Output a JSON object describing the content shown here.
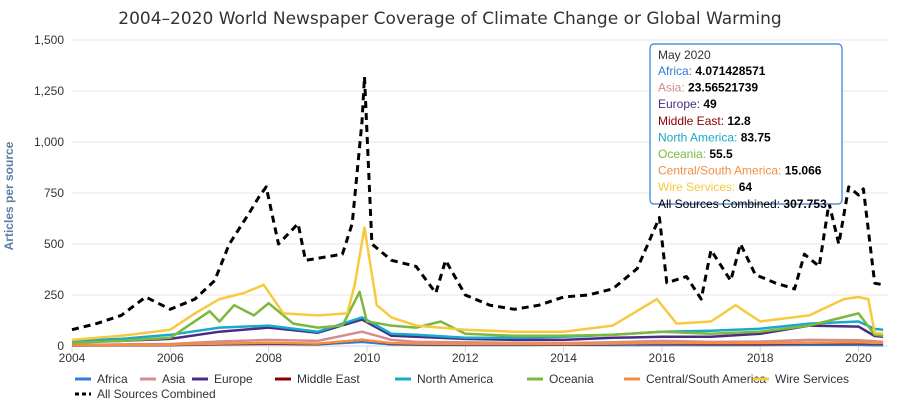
{
  "chart_data": {
    "type": "line",
    "title": "2004–2020 World Newspaper Coverage of Climate Change or Global Warming",
    "xlabel": "",
    "ylabel": "Articles per source",
    "xlim": [
      2004,
      2020.6
    ],
    "ylim": [
      0,
      1500
    ],
    "x_ticks": [
      "2004",
      "2006",
      "2008",
      "2010",
      "2012",
      "2014",
      "2016",
      "2018",
      "2020"
    ],
    "y_ticks": [
      "0",
      "250",
      "500",
      "750",
      "1,000",
      "1,250",
      "1,500"
    ],
    "grid": "horizontal",
    "legend_position": "bottom",
    "series": [
      {
        "name": "Africa",
        "color": "#2f7ed8",
        "dash": "solid",
        "x": [
          2004,
          2005,
          2006,
          2007,
          2008,
          2009,
          2009.9,
          2010.5,
          2011,
          2012,
          2013,
          2014,
          2015,
          2016,
          2017,
          2018,
          2019,
          2020,
          2020.33,
          2020.5
        ],
        "values": [
          2,
          3,
          4,
          8,
          10,
          8,
          20,
          8,
          6,
          5,
          5,
          6,
          5,
          5,
          5,
          5,
          6,
          6,
          4.1,
          4
        ]
      },
      {
        "name": "Asia",
        "color": "#d48c8c",
        "dash": "solid",
        "x": [
          2004,
          2005,
          2006,
          2007,
          2008,
          2009,
          2009.9,
          2010.5,
          2011,
          2012,
          2013,
          2014,
          2015,
          2016,
          2017,
          2018,
          2019,
          2020,
          2020.33,
          2020.5
        ],
        "values": [
          5,
          8,
          10,
          22,
          30,
          25,
          70,
          30,
          20,
          18,
          15,
          14,
          18,
          25,
          20,
          22,
          30,
          28,
          23.6,
          20
        ]
      },
      {
        "name": "Europe",
        "color": "#4b2c84",
        "dash": "solid",
        "x": [
          2004,
          2005,
          2006,
          2007,
          2008,
          2009,
          2009.9,
          2010.5,
          2011,
          2012,
          2013,
          2014,
          2015,
          2016,
          2017,
          2018,
          2019,
          2020,
          2020.33,
          2020.5
        ],
        "values": [
          20,
          25,
          35,
          70,
          90,
          65,
          130,
          50,
          45,
          35,
          30,
          30,
          40,
          45,
          45,
          60,
          100,
          95,
          49,
          45
        ]
      },
      {
        "name": "Middle East",
        "color": "#8b0000",
        "dash": "solid",
        "x": [
          2004,
          2005,
          2006,
          2007,
          2008,
          2009,
          2009.9,
          2010.5,
          2011,
          2012,
          2013,
          2014,
          2015,
          2016,
          2017,
          2018,
          2019,
          2020,
          2020.33,
          2020.5
        ],
        "values": [
          3,
          4,
          5,
          10,
          12,
          10,
          30,
          12,
          10,
          8,
          8,
          8,
          10,
          12,
          10,
          10,
          14,
          14,
          12.8,
          12
        ]
      },
      {
        "name": "North America",
        "color": "#1aa9c9",
        "dash": "solid",
        "x": [
          2004,
          2005,
          2006,
          2007,
          2008,
          2009,
          2009.9,
          2010.5,
          2011,
          2012,
          2013,
          2014,
          2015,
          2016,
          2017,
          2018,
          2019,
          2020,
          2020.33,
          2020.5
        ],
        "values": [
          25,
          35,
          55,
          90,
          100,
          70,
          140,
          60,
          55,
          40,
          40,
          45,
          55,
          70,
          75,
          85,
          110,
          120,
          83.75,
          80
        ]
      },
      {
        "name": "Oceania",
        "color": "#7cb83b",
        "dash": "solid",
        "x": [
          2004,
          2005,
          2006,
          2006.8,
          2007,
          2007.3,
          2007.7,
          2008,
          2008.5,
          2009,
          2009.5,
          2009.85,
          2010,
          2010.5,
          2011,
          2011.5,
          2012,
          2013,
          2014,
          2015,
          2016,
          2017,
          2018,
          2019,
          2019.5,
          2020,
          2020.33,
          2020.5
        ],
        "values": [
          15,
          25,
          40,
          170,
          120,
          200,
          150,
          210,
          110,
          90,
          100,
          265,
          120,
          100,
          90,
          120,
          60,
          50,
          50,
          55,
          70,
          60,
          70,
          100,
          130,
          160,
          55.5,
          50
        ]
      },
      {
        "name": "Central/South America",
        "color": "#f28f43",
        "dash": "solid",
        "x": [
          2004,
          2005,
          2006,
          2007,
          2008,
          2009,
          2009.9,
          2010.5,
          2011,
          2012,
          2013,
          2014,
          2015,
          2016,
          2017,
          2018,
          2019,
          2020,
          2020.33,
          2020.5
        ],
        "values": [
          3,
          5,
          6,
          12,
          15,
          12,
          30,
          14,
          12,
          10,
          10,
          10,
          12,
          14,
          14,
          14,
          16,
          18,
          15.066,
          15
        ]
      },
      {
        "name": "Wire Services",
        "color": "#f7c93e",
        "dash": "solid",
        "x": [
          2004,
          2005,
          2006,
          2006.5,
          2007,
          2007.5,
          2007.9,
          2008.3,
          2009,
          2009.6,
          2009.75,
          2009.95,
          2010.2,
          2010.5,
          2011,
          2012,
          2013,
          2014,
          2015,
          2015.9,
          2016.3,
          2017,
          2017.5,
          2018,
          2019,
          2019.7,
          2020,
          2020.2,
          2020.33,
          2020.5
        ],
        "values": [
          30,
          50,
          80,
          160,
          230,
          260,
          300,
          160,
          150,
          160,
          300,
          580,
          200,
          140,
          100,
          80,
          70,
          70,
          100,
          230,
          110,
          120,
          200,
          120,
          150,
          230,
          240,
          230,
          64,
          60
        ]
      },
      {
        "name": "All Sources Combined",
        "color": "#000000",
        "dash": "dashed",
        "x": [
          2004,
          2004.5,
          2005,
          2005.5,
          2006,
          2006.5,
          2006.9,
          2007.2,
          2007.6,
          2007.8,
          2007.95,
          2008.2,
          2008.6,
          2008.75,
          2009,
          2009.5,
          2009.7,
          2009.9,
          2009.95,
          2010.1,
          2010.5,
          2011,
          2011.4,
          2011.6,
          2012,
          2012.5,
          2013,
          2013.5,
          2014,
          2014.5,
          2015,
          2015.5,
          2015.95,
          2016.1,
          2016.5,
          2016.8,
          2017,
          2017.4,
          2017.6,
          2017.9,
          2018.3,
          2018.7,
          2018.9,
          2019.2,
          2019.4,
          2019.6,
          2019.8,
          2020,
          2020.1,
          2020.33,
          2020.5
        ],
        "values": [
          80,
          110,
          150,
          240,
          180,
          230,
          320,
          500,
          650,
          730,
          780,
          500,
          600,
          420,
          430,
          450,
          600,
          1100,
          1320,
          500,
          420,
          390,
          260,
          420,
          250,
          200,
          180,
          200,
          240,
          250,
          280,
          380,
          630,
          310,
          340,
          230,
          470,
          320,
          500,
          350,
          310,
          280,
          450,
          390,
          700,
          500,
          780,
          740,
          770,
          307.753,
          300
        ]
      }
    ],
    "tooltip": {
      "date": "May 2020",
      "items": [
        {
          "name": "Africa",
          "value": "4.071428571",
          "color": "#2f7ed8"
        },
        {
          "name": "Asia",
          "value": "23.56521739",
          "color": "#d48c8c"
        },
        {
          "name": "Europe",
          "value": "49",
          "color": "#4b2c84"
        },
        {
          "name": "Middle East",
          "value": "12.8",
          "color": "#8b0000"
        },
        {
          "name": "North America",
          "value": "83.75",
          "color": "#1aa9c9"
        },
        {
          "name": "Oceania",
          "value": "55.5",
          "color": "#7cb83b"
        },
        {
          "name": "Central/South America",
          "value": "15.066",
          "color": "#f28f43"
        },
        {
          "name": "Wire Services",
          "value": "64",
          "color": "#f7c93e"
        },
        {
          "name": "All Sources Combined",
          "value": "307.753",
          "color": "#000000"
        }
      ]
    }
  }
}
